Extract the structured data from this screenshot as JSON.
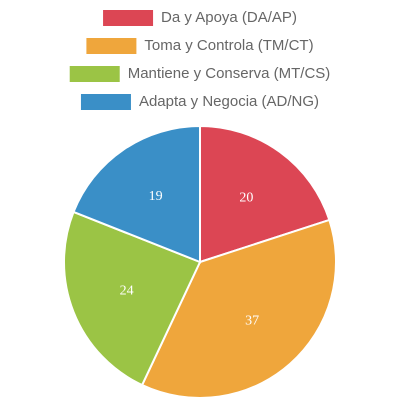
{
  "chart_data": {
    "type": "pie",
    "categories": [
      "Da y Apoya (DA/AP)",
      "Toma y Controla (TM/CT)",
      "Mantiene y Conserva (MT/CS)",
      "Adapta y Negocia (AD/NG)"
    ],
    "values": [
      20,
      37,
      24,
      19
    ],
    "colors": [
      "#dc4654",
      "#efa63c",
      "#9bc445",
      "#3a8fc7"
    ],
    "legend": "top"
  }
}
